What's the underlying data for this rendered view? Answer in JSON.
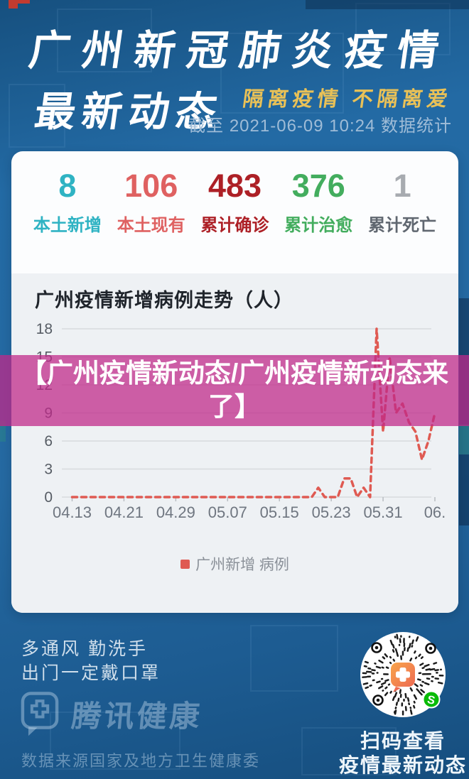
{
  "header": {
    "title": "广州新冠肺炎疫情",
    "subtitle": "最新动态",
    "slogan": "隔离疫情 不隔离爱",
    "as_of": "截至 2021-06-09 10:24 数据统计"
  },
  "stats": {
    "items": [
      {
        "value": "8",
        "label": "本土新增",
        "color": "#2fb3c3",
        "label_color": "#2fb3c3",
        "weight": "600"
      },
      {
        "value": "106",
        "label": "本土现有",
        "color": "#df6161",
        "label_color": "#df6161",
        "weight": "600"
      },
      {
        "value": "483",
        "label": "累计确诊",
        "color": "#ad2026",
        "label_color": "#ad2026",
        "weight": "800"
      },
      {
        "value": "376",
        "label": "累计治愈",
        "color": "#43ad5e",
        "label_color": "#43ad5e",
        "weight": "600"
      },
      {
        "value": "1",
        "label": "累计死亡",
        "color": "#a7abb0",
        "label_color": "#606770",
        "weight": "600"
      }
    ]
  },
  "overlay_banner": {
    "text": "【广州疫情新动态/广州疫情新动态来了】",
    "bg_color": "#bf2889"
  },
  "chart_data": {
    "type": "line",
    "title": "广州疫情新增病例走势（人）",
    "legend_label": "广州新增 病例",
    "line_color": "#df5a52",
    "line_style": "dashed",
    "grid": "horizontal",
    "ylim": [
      0,
      18
    ],
    "y_ticks": [
      0,
      3,
      6,
      9,
      12,
      15,
      18
    ],
    "x_tick_labels": [
      "04.13",
      "04.21",
      "04.29",
      "05.07",
      "05.15",
      "05.23",
      "05.31",
      "06."
    ],
    "x_tick_days": [
      0,
      8,
      16,
      24,
      32,
      40,
      48,
      56
    ],
    "x": [
      "04.13",
      "04.14",
      "04.15",
      "04.16",
      "04.17",
      "04.18",
      "04.19",
      "04.20",
      "04.21",
      "04.22",
      "04.23",
      "04.24",
      "04.25",
      "04.26",
      "04.27",
      "04.28",
      "04.29",
      "04.30",
      "05.01",
      "05.02",
      "05.03",
      "05.04",
      "05.05",
      "05.06",
      "05.07",
      "05.08",
      "05.09",
      "05.10",
      "05.11",
      "05.12",
      "05.13",
      "05.14",
      "05.15",
      "05.16",
      "05.17",
      "05.18",
      "05.19",
      "05.20",
      "05.21",
      "05.22",
      "05.23",
      "05.24",
      "05.25",
      "05.26",
      "05.27",
      "05.28",
      "05.29",
      "05.30",
      "05.31",
      "06.01",
      "06.02",
      "06.03",
      "06.04",
      "06.05",
      "06.06",
      "06.07",
      "06.08"
    ],
    "series": [
      {
        "name": "广州新增 病例",
        "values": [
          0,
          0,
          0,
          0,
          0,
          0,
          0,
          0,
          0,
          0,
          0,
          0,
          0,
          0,
          0,
          0,
          0,
          0,
          0,
          0,
          0,
          0,
          0,
          0,
          0,
          0,
          0,
          0,
          0,
          0,
          0,
          0,
          0,
          0,
          0,
          0,
          0,
          0,
          1,
          0,
          0,
          0,
          2,
          2,
          0,
          1,
          0,
          18,
          7,
          15,
          9,
          10,
          8,
          7,
          4,
          6,
          9
        ]
      }
    ]
  },
  "footer": {
    "tip_line1": "多通风 勤洗手",
    "tip_line2": "出门一定戴口罩",
    "brand": "腾讯健康",
    "source": "数据来源国家及地方卫生健康委",
    "qr_line1": "扫码查看",
    "qr_line2": "疫情最新动态",
    "qr_badge_color": "#09bb07",
    "qr_logo_colors": [
      "#f9a54a",
      "#ed6a52"
    ]
  }
}
